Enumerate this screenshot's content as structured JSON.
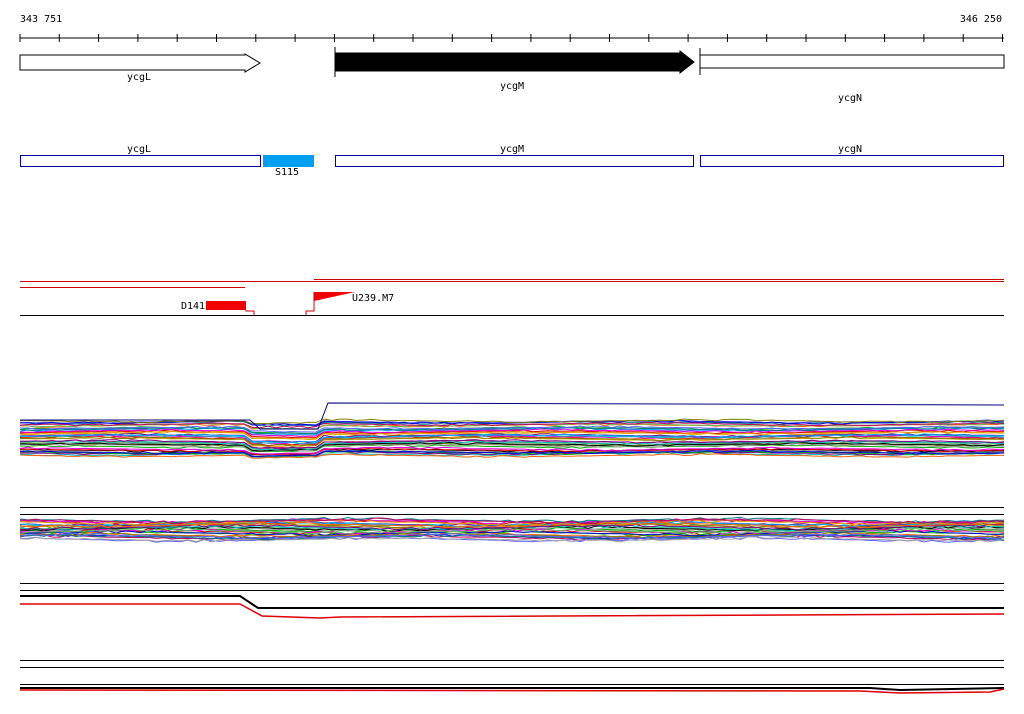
{
  "ruler": {
    "start": "343 751",
    "end": "346 250"
  },
  "genes": [
    {
      "label": "ycgL"
    },
    {
      "label": "ycgM"
    },
    {
      "label": "ycgN"
    }
  ],
  "features": [
    {
      "label": "ycgL"
    },
    {
      "label": "ycgM"
    },
    {
      "label": "ycgN"
    },
    {
      "label": "S115"
    }
  ],
  "markers": [
    {
      "label": "D141"
    },
    {
      "label": "U239.M7"
    }
  ]
}
